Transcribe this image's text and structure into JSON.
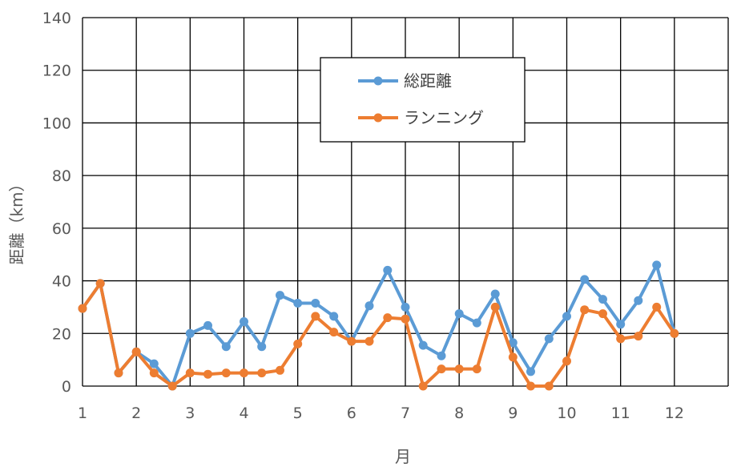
{
  "chart_data": {
    "type": "line",
    "xlabel": "月",
    "ylabel": "距離（km）",
    "ylim": [
      0,
      140
    ],
    "xlim": [
      1,
      13
    ],
    "y_ticks": [
      "0",
      "20",
      "40",
      "60",
      "80",
      "100",
      "120",
      "140"
    ],
    "x_ticks": [
      "1",
      "2",
      "3",
      "4",
      "5",
      "6",
      "7",
      "8",
      "9",
      "10",
      "11",
      "12"
    ],
    "grid": true,
    "legend_position": "top-center",
    "series": [
      {
        "name": "総距離",
        "color": "#5B9BD5",
        "x": [
          1,
          1.33,
          1.67,
          2,
          2.33,
          2.67,
          3,
          3.33,
          3.67,
          4,
          4.33,
          4.67,
          5,
          5.33,
          5.67,
          6,
          6.33,
          6.67,
          7,
          7.33,
          7.67,
          8,
          8.33,
          8.67,
          9,
          9.33,
          9.67,
          10,
          10.33,
          10.67,
          11,
          11.33,
          11.67,
          12
        ],
        "values": [
          29.5,
          39,
          5,
          13,
          8.5,
          0,
          20,
          23,
          15,
          24.5,
          15,
          34.5,
          31.5,
          31.5,
          26.5,
          17,
          30.5,
          44,
          30,
          15.5,
          11.5,
          27.5,
          24,
          35,
          16.5,
          5.5,
          18,
          26.5,
          40.5,
          33,
          23.5,
          32.5,
          46,
          20
        ]
      },
      {
        "name": "ランニング",
        "color": "#ED7D31",
        "x": [
          1,
          1.33,
          1.67,
          2,
          2.33,
          2.67,
          3,
          3.33,
          3.67,
          4,
          4.33,
          4.67,
          5,
          5.33,
          5.67,
          6,
          6.33,
          6.67,
          7,
          7.33,
          7.67,
          8,
          8.33,
          8.67,
          9,
          9.33,
          9.67,
          10,
          10.33,
          10.67,
          11,
          11.33,
          11.67,
          12
        ],
        "values": [
          29.5,
          39,
          5,
          13,
          5,
          0,
          5,
          4.5,
          5,
          5,
          5,
          6,
          16,
          26.5,
          20.5,
          17,
          17,
          26,
          25.5,
          0,
          6.5,
          6.5,
          6.5,
          30,
          11,
          0,
          0,
          9.5,
          29,
          27.5,
          18,
          19,
          30,
          20
        ]
      }
    ]
  }
}
